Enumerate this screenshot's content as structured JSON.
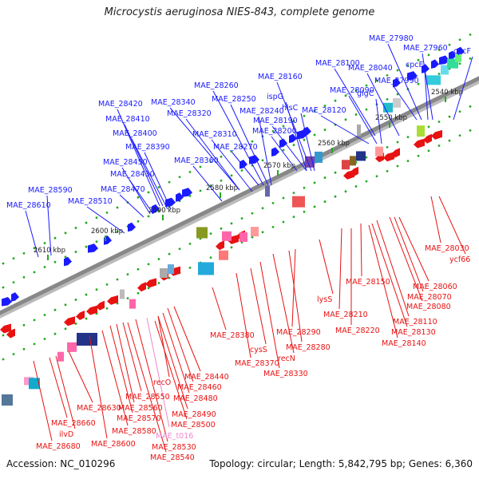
{
  "header": {
    "title": "Microcystis aeruginosa NIES-843, complete genome"
  },
  "footer": {
    "accession": "Accession: NC_010296",
    "summary": "Topology: circular; Length: 5,842,795 bp; Genes: 6,360"
  },
  "colors": {
    "forward_strand": "#1a1aff",
    "reverse_strand": "#e81212",
    "rna": "#ee88cc",
    "backbone": "#888888",
    "tick": "#22aa22"
  },
  "ticks": [
    {
      "label": "2540 kbp"
    },
    {
      "label": "2550 kbp"
    },
    {
      "label": "2560 kbp"
    },
    {
      "label": "2570 kbp"
    },
    {
      "label": "2580 kbp"
    },
    {
      "label": "2590 kbp"
    },
    {
      "label": "2600 kbp"
    },
    {
      "label": "2610 kbp"
    }
  ],
  "forward_genes": [
    {
      "label": "MAE_27980"
    },
    {
      "label": "MAE_27960"
    },
    {
      "label": "cpcF"
    },
    {
      "label": "cpcE"
    },
    {
      "label": "MAE_27990"
    },
    {
      "label": "MAE_28040"
    },
    {
      "label": "MAE_28100"
    },
    {
      "label": "MAE_28160"
    },
    {
      "label": "ispG"
    },
    {
      "label": "MAE_28090"
    },
    {
      "label": "glgC"
    },
    {
      "label": "hisC"
    },
    {
      "label": "MAE_28120"
    },
    {
      "label": "MAE_28190"
    },
    {
      "label": "MAE_28200"
    },
    {
      "label": "MAE_28260"
    },
    {
      "label": "MAE_28250"
    },
    {
      "label": "MAE_28340"
    },
    {
      "label": "MAE_28240"
    },
    {
      "label": "MAE_28320"
    },
    {
      "label": "MAE_28420"
    },
    {
      "label": "MAE_28410"
    },
    {
      "label": "MAE_28310"
    },
    {
      "label": "MAE_28400"
    },
    {
      "label": "MAE_28390"
    },
    {
      "label": "MAE_28270"
    },
    {
      "label": "MAE_28360"
    },
    {
      "label": "MAE_28450"
    },
    {
      "label": "MAE_28430"
    },
    {
      "label": "MAE_28590"
    },
    {
      "label": "MAE_28470"
    },
    {
      "label": "MAE_28510"
    },
    {
      "label": "MAE_28610"
    }
  ],
  "reverse_genes": [
    {
      "label": "MAE_28030"
    },
    {
      "label": "ycf66"
    },
    {
      "label": "MAE_28150"
    },
    {
      "label": "MAE_28060"
    },
    {
      "label": "MAE_28070"
    },
    {
      "label": "MAE_28080"
    },
    {
      "label": "lysS"
    },
    {
      "label": "MAE_28110"
    },
    {
      "label": "MAE_28210"
    },
    {
      "label": "MAE_28130"
    },
    {
      "label": "MAE_28220"
    },
    {
      "label": "MAE_28140"
    },
    {
      "label": "MAE_28290"
    },
    {
      "label": "MAE_28380"
    },
    {
      "label": "MAE_28280"
    },
    {
      "label": "cysS"
    },
    {
      "label": "recN"
    },
    {
      "label": "MAE_28370"
    },
    {
      "label": "MAE_28330"
    },
    {
      "label": "MAE_28440"
    },
    {
      "label": "MAE_28460"
    },
    {
      "label": "recO"
    },
    {
      "label": "MAE_28480"
    },
    {
      "label": "MAE_28550"
    },
    {
      "label": "MAE_28560"
    },
    {
      "label": "MAE_28490"
    },
    {
      "label": "MAE_28630"
    },
    {
      "label": "MAE_28570"
    },
    {
      "label": "MAE_28500"
    },
    {
      "label": "MAE_28660"
    },
    {
      "label": "MAE_28580"
    },
    {
      "label": "ilvD"
    },
    {
      "label": "MAE_28600"
    },
    {
      "label": "MAE_28680"
    },
    {
      "label": "MAE_28530"
    },
    {
      "label": "MAE_28540"
    }
  ],
  "rna_genes": [
    {
      "label": "MAE_t016"
    }
  ]
}
